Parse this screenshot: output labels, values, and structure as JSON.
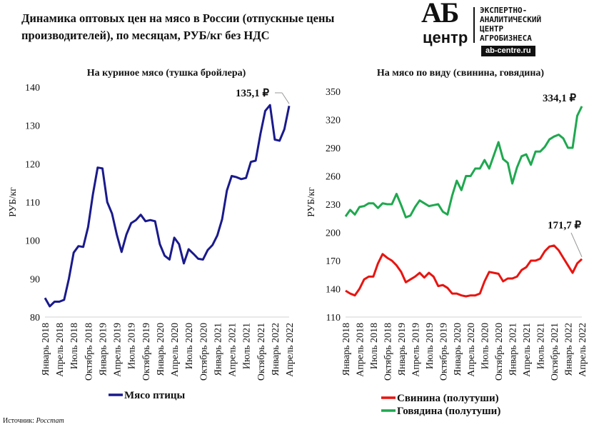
{
  "title_line1": "Динамика оптовых цен на мясо в России (отпускные цены",
  "title_line2": "производителей), по месяцам, РУБ/кг без НДС",
  "logo": {
    "ab": "АБ",
    "centre": "центр",
    "lines": [
      "ЭКСПЕРТНО-",
      "АНАЛИТИЧЕСКИЙ",
      "ЦЕНТР",
      "АГРОБИЗНЕСА"
    ],
    "url": "ab-centre.ru"
  },
  "source_label": "Источник:",
  "source_value": "Росстат",
  "chart_data": [
    {
      "type": "line",
      "title": "На куриное мясо (тушка бройлера)",
      "ylabel": "РУБ/кг",
      "ylim": [
        80,
        140
      ],
      "yticks": [
        80,
        90,
        100,
        110,
        120,
        130,
        140
      ],
      "xtick_labels": [
        "Январь 2018",
        "Апрель 2018",
        "Июль 2018",
        "Октябрь 2018",
        "Январь 2019",
        "Апрель 2019",
        "Июль 2019",
        "Октябрь 2019",
        "Январь 2020",
        "Апрель 2020",
        "Июль 2020",
        "Октябрь 2020",
        "Январь 2021",
        "Апрель 2021",
        "Июль 2021",
        "Октябрь 2021",
        "Январь 2022",
        "Апрель 2022"
      ],
      "grid": false,
      "legend": "bottom",
      "annotation": "135,1 ₽",
      "series": [
        {
          "name": "Мясо птицы",
          "color": "#1a1a8c",
          "values": [
            85,
            82.8,
            84,
            84,
            84.5,
            90,
            96.8,
            98.5,
            98.3,
            103.5,
            112,
            119,
            118.8,
            110,
            107,
            101.5,
            97,
            101.5,
            104.5,
            105.3,
            106.7,
            105,
            105.3,
            105,
            99,
            96,
            95,
            100.7,
            99,
            94,
            97.7,
            96.5,
            95.2,
            95,
            97.5,
            98.8,
            101.3,
            105.5,
            113,
            116.8,
            116.5,
            116,
            116.3,
            120.5,
            120.8,
            127.8,
            133.8,
            135.3,
            126.3,
            126,
            129,
            135.1
          ]
        }
      ]
    },
    {
      "type": "line",
      "title": "На мясо по виду (свинина, говядина)",
      "ylabel": "РУБ/кг",
      "ylim": [
        110,
        350
      ],
      "yticks": [
        110,
        140,
        170,
        200,
        230,
        260,
        290,
        320,
        350
      ],
      "xtick_labels": [
        "Январь 2018",
        "Апрель 2018",
        "Июль 2018",
        "Октябрь 2018",
        "Январь 2019",
        "Апрель 2019",
        "Июль 2019",
        "Октябрь 2019",
        "Январь 2020",
        "Апрель 2020",
        "Июль 2020",
        "Октябрь 2020",
        "Январь 2021",
        "Апрель 2021",
        "Июль 2021",
        "Октябрь 2021",
        "Январь 2022",
        "Апрель 2022"
      ],
      "grid": false,
      "legend": "bottom",
      "annotations": [
        "334,1 ₽",
        "171,7 ₽"
      ],
      "series": [
        {
          "name": "Свинина (полутуши)",
          "color": "#e8140f",
          "values": [
            138,
            135,
            133,
            140,
            150,
            153,
            153,
            167,
            177,
            173,
            170,
            165,
            158,
            147,
            150,
            153,
            157,
            152,
            157,
            153,
            143,
            144,
            141,
            135,
            135,
            133,
            132,
            133,
            133,
            135,
            148,
            158,
            157,
            156,
            148,
            151,
            151,
            153,
            160,
            163,
            170,
            170,
            172,
            180,
            185,
            186,
            181,
            173,
            165,
            157,
            167,
            171.7
          ]
        },
        {
          "name": "Говядина (полутуши)",
          "color": "#1fa84f",
          "values": [
            217,
            224,
            219,
            227,
            228,
            231,
            231,
            226,
            231,
            230,
            230,
            241,
            229,
            216,
            218,
            227,
            234,
            231,
            228,
            229,
            230,
            222,
            219,
            239,
            255,
            245,
            260,
            260,
            268,
            268,
            277,
            268,
            282,
            296,
            278,
            274,
            252,
            269,
            281,
            283,
            272,
            286,
            286,
            291,
            299,
            302,
            304,
            300,
            290,
            290,
            324,
            334.1
          ]
        }
      ]
    }
  ]
}
